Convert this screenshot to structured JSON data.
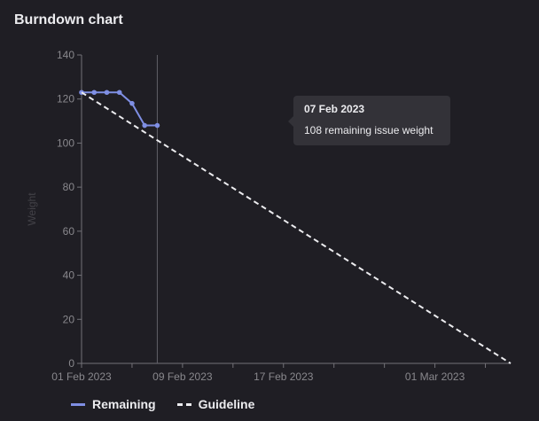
{
  "header": {
    "title": "Burndown chart"
  },
  "tooltip": {
    "date": "07 Feb 2023",
    "text": "108 remaining issue weight"
  },
  "legend": {
    "remaining": "Remaining",
    "guideline": "Guideline"
  },
  "colors": {
    "remaining": "#7f8fe4",
    "guideline": "#ececef",
    "axis": "#737278",
    "background": "#1f1e24"
  },
  "chart_data": {
    "type": "line",
    "title": "Burndown chart",
    "xlabel": "",
    "ylabel": "Weight",
    "ylim": [
      0,
      140
    ],
    "yticks": [
      0,
      20,
      40,
      60,
      80,
      100,
      120,
      140
    ],
    "xticks": [
      "01 Feb 2023",
      "09 Feb 2023",
      "17 Feb 2023",
      "01 Mar 2023"
    ],
    "xrange": [
      "2023-02-01",
      "2023-03-07"
    ],
    "cursor_date": "2023-02-07",
    "legend_position": "bottom-left",
    "series": [
      {
        "name": "Remaining",
        "style": "solid",
        "x": [
          "2023-02-01",
          "2023-02-02",
          "2023-02-03",
          "2023-02-04",
          "2023-02-05",
          "2023-02-06",
          "2023-02-07"
        ],
        "y": [
          123,
          123,
          123,
          123,
          118,
          108,
          108
        ]
      },
      {
        "name": "Guideline",
        "style": "dashed",
        "x": [
          "2023-02-01",
          "2023-03-07"
        ],
        "y": [
          123,
          0
        ]
      }
    ]
  }
}
